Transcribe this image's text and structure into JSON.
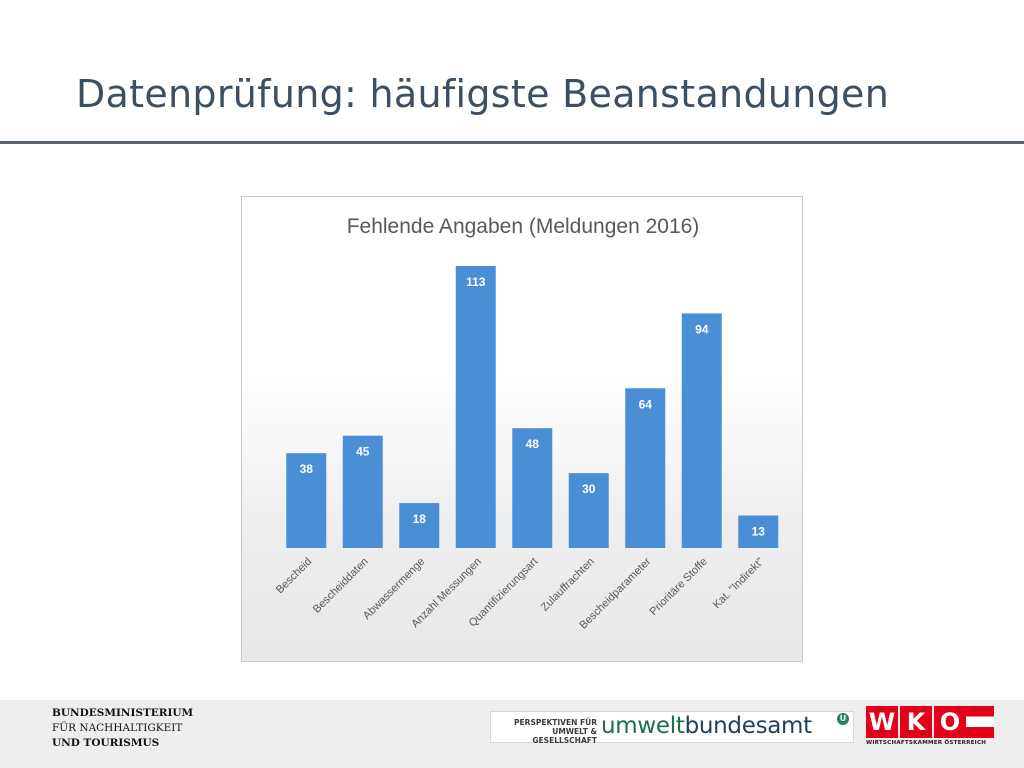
{
  "slide": {
    "title": "Datenprüfung: häufigste Beanstandungen"
  },
  "chart_data": {
    "type": "bar",
    "title": "Fehlende Angaben (Meldungen 2016)",
    "categories": [
      "Bescheid",
      "Bescheiddaten",
      "Abwassermenge",
      "Anzahl Messungen",
      "Quantifizierungsart",
      "Zulauffrachten",
      "Bescheidparameter",
      "Prioritäre Stoffe",
      "Kat. \"Indirekt\""
    ],
    "values": [
      38,
      45,
      18,
      113,
      48,
      30,
      64,
      94,
      13
    ],
    "xlabel": "",
    "ylabel": "",
    "ylim": [
      0,
      113
    ],
    "grid": false,
    "legend": "none",
    "bar_color": "#4a8fd6",
    "label_color": "#ffffff"
  },
  "footer": {
    "ministry_line1": "BUNDESMINISTERIUM",
    "ministry_line2": "FÜR NACHHALTIGKEIT",
    "ministry_line3": "UND TOURISMUS",
    "uba_tagline1": "PERSPEKTIVEN FÜR",
    "uba_tagline2": "UMWELT & GESELLSCHAFT",
    "uba_word1": "umwelt",
    "uba_word2": "bundesamt",
    "uba_mark": "U",
    "wko_letters": [
      "W",
      "K",
      "O"
    ],
    "wko_subtitle": "WIRTSCHAFTSKAMMER ÖSTERREICH"
  }
}
